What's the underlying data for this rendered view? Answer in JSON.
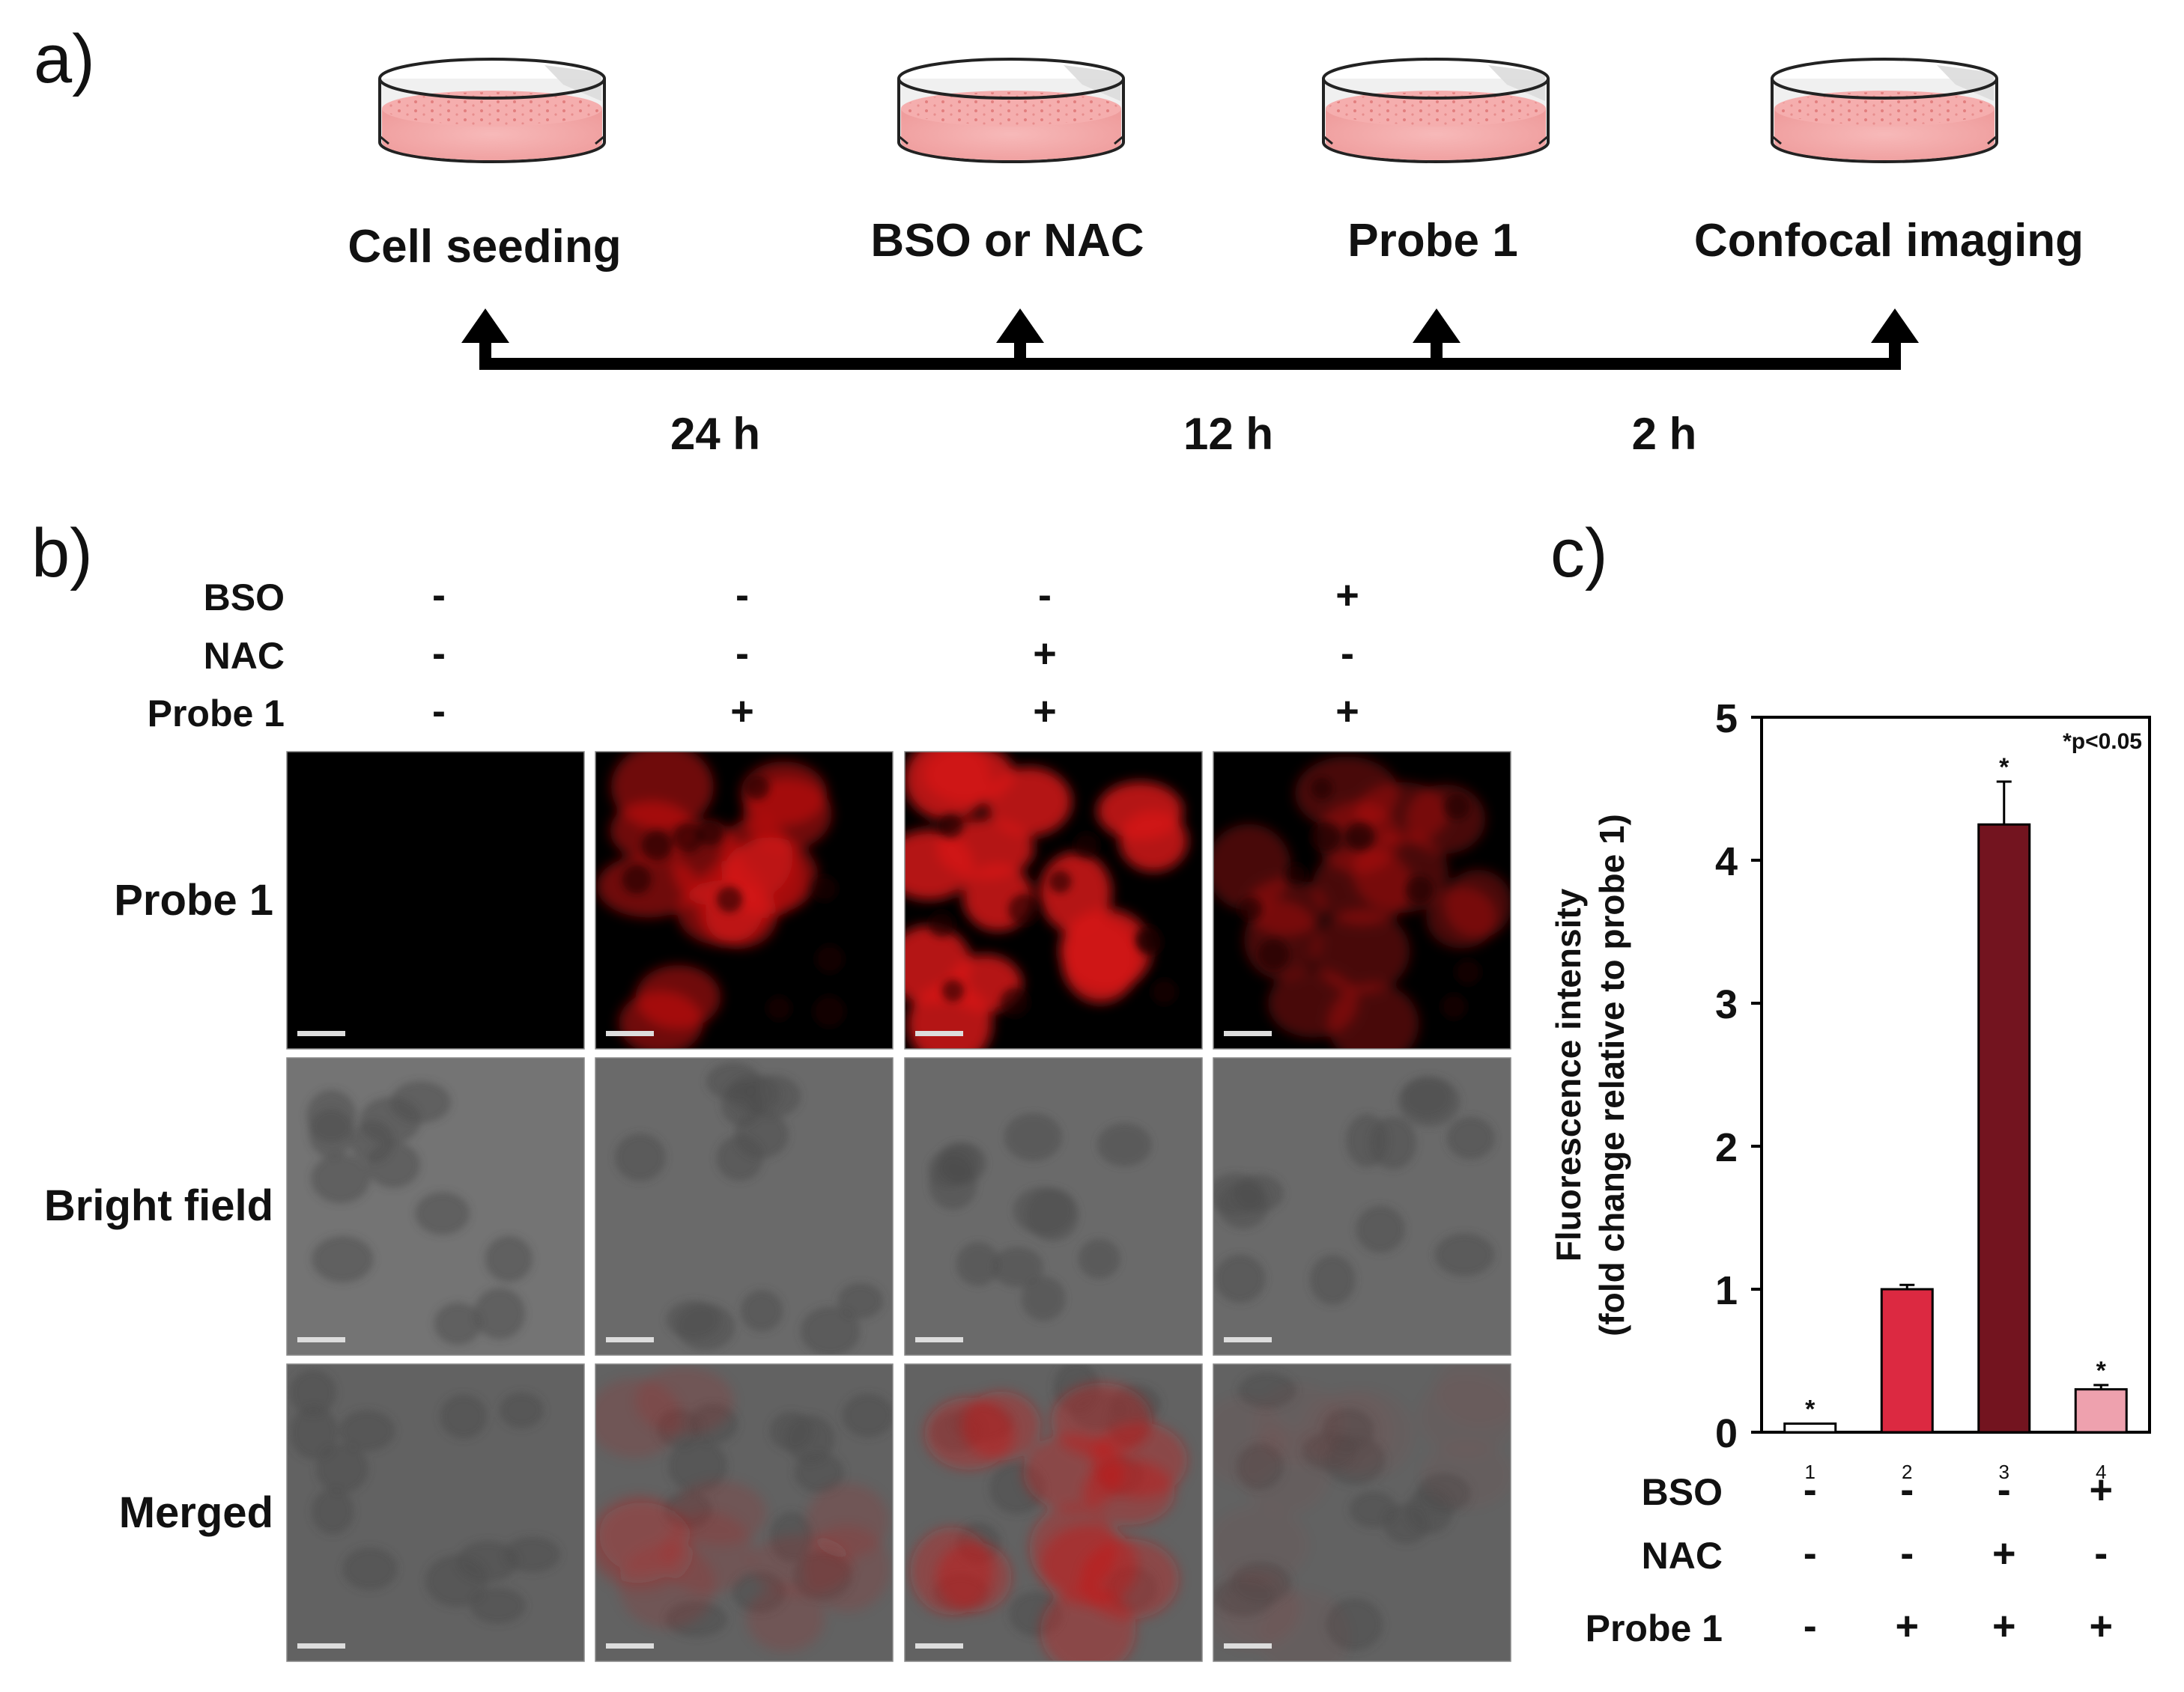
{
  "panel_a": {
    "label": "a)",
    "steps": [
      {
        "label": "Cell seeding"
      },
      {
        "label": "BSO or NAC"
      },
      {
        "label": "Probe 1"
      },
      {
        "label": "Confocal imaging"
      }
    ],
    "intervals": [
      "24 h",
      "12 h",
      "2 h"
    ]
  },
  "panel_b": {
    "label": "b)",
    "treatment_rows": [
      {
        "name": "BSO",
        "signs": [
          "-",
          "-",
          "-",
          "+"
        ]
      },
      {
        "name": "NAC",
        "signs": [
          "-",
          "-",
          "+",
          "-"
        ]
      },
      {
        "name": "Probe 1",
        "signs": [
          "-",
          "+",
          "+",
          "+"
        ]
      }
    ],
    "image_rows": [
      {
        "label": "Probe 1",
        "kind": "fluorescence",
        "intensity": [
          0.0,
          0.45,
          1.0,
          0.15
        ]
      },
      {
        "label": "Bright field",
        "kind": "brightfield",
        "intensity": [
          0,
          0,
          0,
          0
        ]
      },
      {
        "label": "Merged",
        "kind": "merged",
        "intensity": [
          0.0,
          0.2,
          0.6,
          0.05
        ]
      }
    ],
    "colors": {
      "fluorescence": "#d41515",
      "brightfield": "#6a6a6a",
      "scalebar": "#dddddd"
    }
  },
  "panel_c": {
    "label": "c)",
    "chart_data": {
      "type": "bar",
      "ylabel_line1": "Fluorescence intensity",
      "ylabel_line2": "(fold change relative to probe 1)",
      "ylim": [
        0,
        5
      ],
      "yticks": [
        "0",
        "1",
        "2",
        "3",
        "4",
        "5"
      ],
      "annotation": "*p<0.05",
      "categories": [
        "1",
        "2",
        "3",
        "4"
      ],
      "values": [
        0.06,
        1.0,
        4.25,
        0.3
      ],
      "errors": [
        0.0,
        0.03,
        0.3,
        0.03
      ],
      "significance": [
        "*",
        "",
        "*",
        "*"
      ],
      "bar_colors": [
        "#ffffff",
        "#dc2941",
        "#73141f",
        "#eea1ae"
      ],
      "treatments": [
        {
          "name": "BSO",
          "signs": [
            "-",
            "-",
            "-",
            "+"
          ]
        },
        {
          "name": "NAC",
          "signs": [
            "-",
            "-",
            "+",
            "-"
          ]
        },
        {
          "name": "Probe 1",
          "signs": [
            "-",
            "+",
            "+",
            "+"
          ]
        }
      ]
    }
  }
}
